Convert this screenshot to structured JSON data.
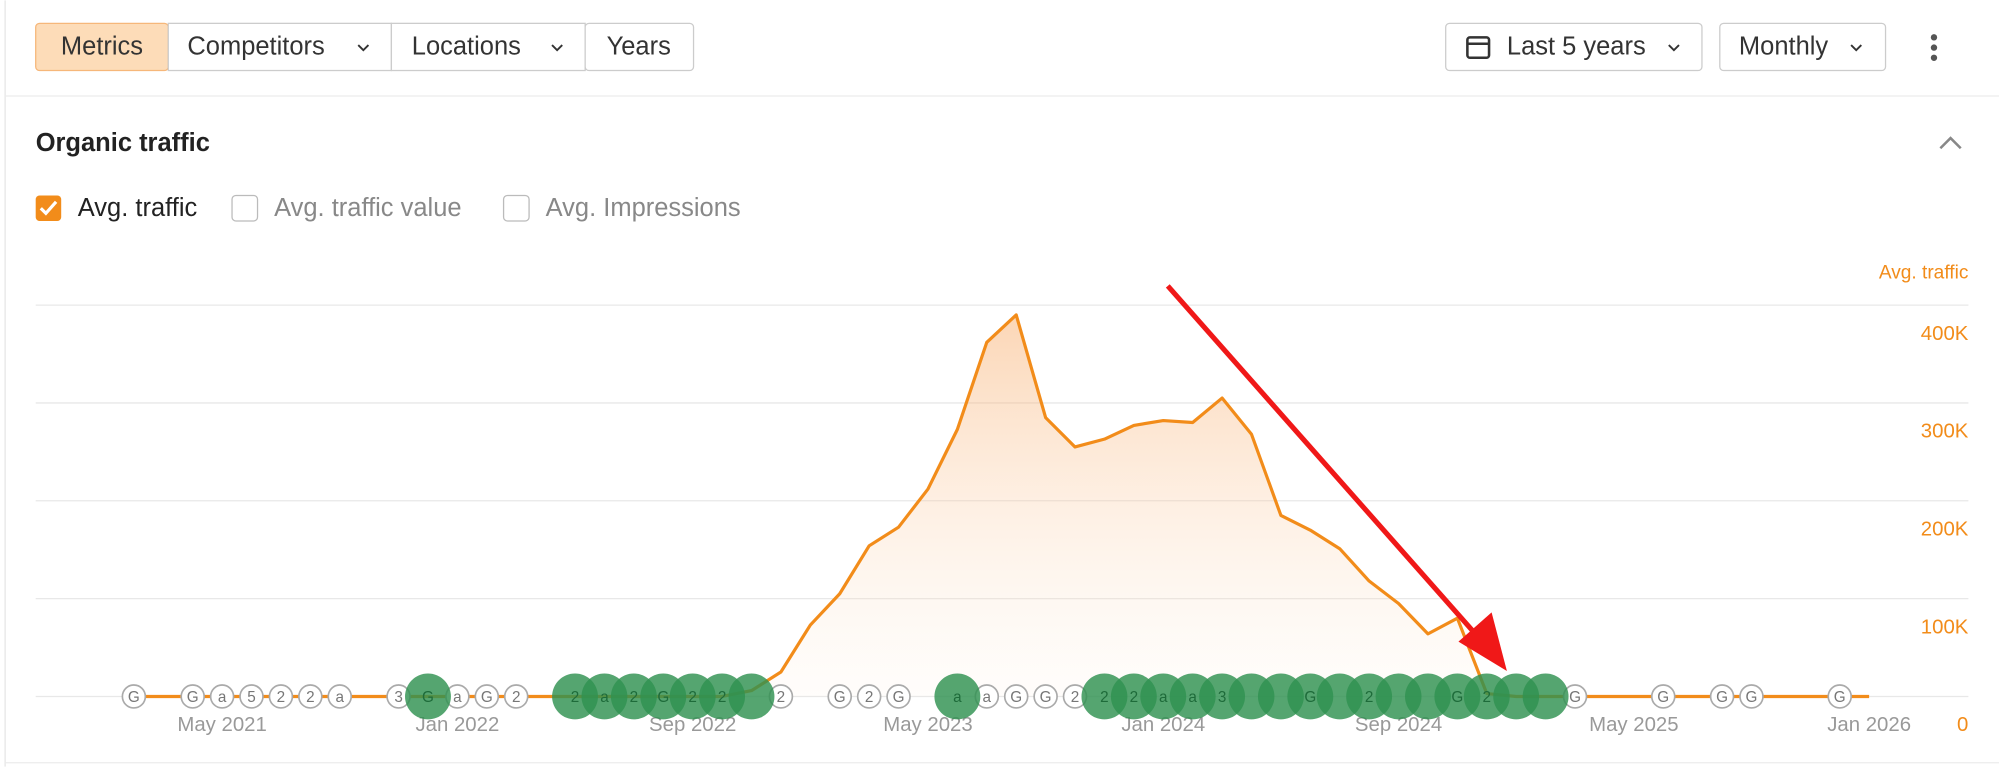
{
  "toolbar": {
    "tabs": [
      "Metrics",
      "Competitors",
      "Locations",
      "Years"
    ],
    "range": "Last 5 years",
    "interval": "Monthly"
  },
  "section": {
    "title": "Organic traffic",
    "checkboxes": [
      {
        "label": "Avg. traffic",
        "checked": true
      },
      {
        "label": "Avg. traffic value",
        "checked": false
      },
      {
        "label": "Avg. Impressions",
        "checked": false
      }
    ]
  },
  "chart_data": {
    "type": "area",
    "y_label": "Avg. traffic",
    "color": "#f28c1a",
    "grid": true,
    "categories": [
      null,
      null,
      null,
      "May 2021",
      null,
      null,
      null,
      null,
      null,
      null,
      null,
      "Jan 2022",
      null,
      null,
      null,
      null,
      null,
      null,
      null,
      "Sep 2022",
      null,
      null,
      null,
      null,
      null,
      null,
      null,
      "May 2023",
      null,
      null,
      null,
      null,
      null,
      null,
      null,
      "Jan 2024",
      null,
      null,
      null,
      null,
      null,
      null,
      null,
      "Sep 2024",
      null,
      null,
      null,
      null,
      null,
      null,
      null,
      "May 2025",
      null,
      null,
      null,
      null,
      null,
      null,
      null,
      "Jan 2026"
    ],
    "values": [
      0,
      0,
      0,
      0,
      0,
      0,
      0,
      0,
      0,
      0,
      0,
      0,
      0,
      0,
      0,
      0,
      0,
      0,
      0,
      0,
      0,
      6000,
      25000,
      73000,
      105000,
      154000,
      173000,
      212000,
      273000,
      362000,
      390000,
      285000,
      255000,
      263000,
      277000,
      282000,
      280000,
      305000,
      268000,
      185000,
      170000,
      151000,
      118000,
      95000,
      64000,
      80000,
      3000,
      0,
      0,
      0,
      0,
      0,
      0,
      0,
      0,
      0,
      0,
      0,
      0,
      0
    ],
    "ylim": [
      0,
      400000
    ],
    "yticks": [
      0,
      {
        "value": 100000,
        "label": "100K"
      },
      {
        "value": 200000,
        "label": "200K"
      },
      {
        "value": 300000,
        "label": "300K"
      },
      {
        "value": 400000,
        "label": "400K"
      }
    ],
    "events": [
      {
        "at": 0,
        "label": "G"
      },
      {
        "at": 2,
        "label": "G"
      },
      {
        "at": 3,
        "label": "a"
      },
      {
        "at": 4,
        "label": "5"
      },
      {
        "at": 5,
        "label": "2"
      },
      {
        "at": 6,
        "label": "2"
      },
      {
        "at": 7,
        "label": "a"
      },
      {
        "at": 9,
        "label": "3"
      },
      {
        "at": 11,
        "label": "a"
      },
      {
        "at": 12,
        "label": "G"
      },
      {
        "at": 13,
        "label": "2"
      },
      {
        "at": 22,
        "label": "2"
      },
      {
        "at": 24,
        "label": "G"
      },
      {
        "at": 25,
        "label": "2"
      },
      {
        "at": 26,
        "label": "G"
      },
      {
        "at": 29,
        "label": "a"
      },
      {
        "at": 30,
        "label": "G"
      },
      {
        "at": 31,
        "label": "G"
      },
      {
        "at": 32,
        "label": "2"
      },
      {
        "at": 49,
        "label": "G"
      },
      {
        "at": 52,
        "label": "G"
      },
      {
        "at": 54,
        "label": "G"
      },
      {
        "at": 55,
        "label": "G"
      },
      {
        "at": 58,
        "label": "G"
      }
    ],
    "updates": [
      {
        "at": 10,
        "label": "G"
      },
      {
        "at": 15,
        "label": "2"
      },
      {
        "at": 16,
        "label": "a"
      },
      {
        "at": 17,
        "label": "2"
      },
      {
        "at": 18,
        "label": "G"
      },
      {
        "at": 19,
        "label": "2"
      },
      {
        "at": 20,
        "label": "2"
      },
      {
        "at": 21,
        "label": null
      },
      {
        "at": 28,
        "label": "a"
      },
      {
        "at": 33,
        "label": "2"
      },
      {
        "at": 34,
        "label": "2"
      },
      {
        "at": 35,
        "label": "a"
      },
      {
        "at": 36,
        "label": "a"
      },
      {
        "at": 37,
        "label": "3"
      },
      {
        "at": 38,
        "label": null
      },
      {
        "at": 39,
        "label": null
      },
      {
        "at": 40,
        "label": "G"
      },
      {
        "at": 41,
        "label": null
      },
      {
        "at": 42,
        "label": "2"
      },
      {
        "at": 43,
        "label": null
      },
      {
        "at": 44,
        "label": null
      },
      {
        "at": 45,
        "label": "G"
      },
      {
        "at": 46,
        "label": "2"
      },
      {
        "at": 47,
        "label": null
      },
      {
        "at": 48,
        "label": null
      }
    ]
  }
}
